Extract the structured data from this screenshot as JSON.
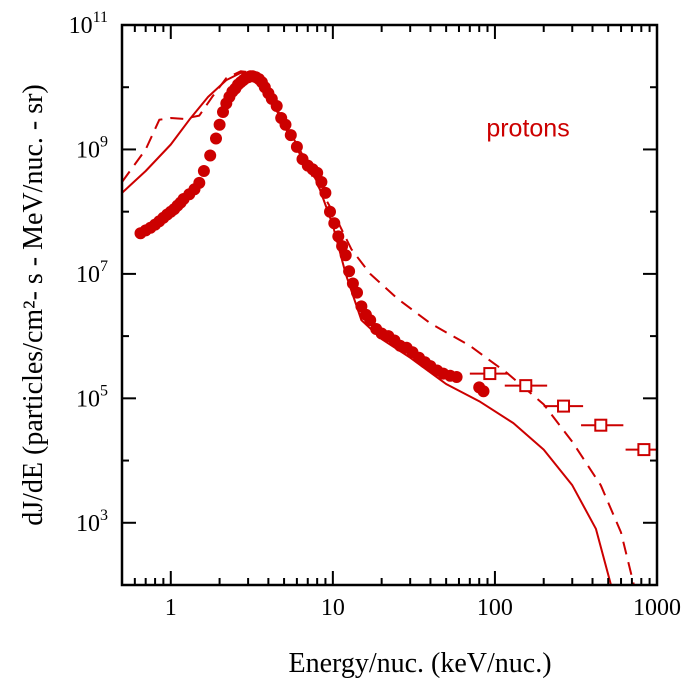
{
  "chart_data": {
    "type": "line",
    "title": "",
    "xlabel": "Energy/nuc. (keV/nuc.)",
    "ylabel": "dJ/dE (particles/cm²- s - MeV/nuc. - sr)",
    "x_scale": "log",
    "y_scale": "log",
    "xlim": [
      0.5,
      1000
    ],
    "ylim": [
      100,
      100000000000
    ],
    "x_ticks": [
      1,
      10,
      100,
      1000
    ],
    "x_tick_labels": [
      "1",
      "10",
      "100",
      "1000"
    ],
    "y_ticks": [
      1000,
      100000,
      10000000,
      1000000000,
      100000000000
    ],
    "y_tick_labels": [
      {
        "base": "10",
        "exp": "3"
      },
      {
        "base": "10",
        "exp": "5"
      },
      {
        "base": "10",
        "exp": "7"
      },
      {
        "base": "10",
        "exp": "9"
      },
      {
        "base": "10",
        "exp": "11"
      }
    ],
    "grid": false,
    "color": "#cc0000",
    "annotations": [
      {
        "text": "protons",
        "x": 160,
        "y": 1600000000
      }
    ],
    "series": [
      {
        "style": "solid-line",
        "x": [
          0.5,
          0.7,
          1.0,
          1.3,
          1.7,
          2.2,
          2.7,
          3.1,
          3.6,
          4.5,
          6,
          8,
          10,
          12,
          15,
          20,
          30,
          50,
          80,
          130,
          200,
          300,
          420,
          520
        ],
        "y": [
          200000000,
          450000000,
          1200000000,
          3000000000,
          7000000000,
          13000000000,
          17000000000,
          17000000000,
          12000000000,
          4500000000,
          1200000000,
          300000000,
          60000000,
          10000000,
          1800000,
          900000,
          450000,
          170000,
          90000,
          40000,
          15000,
          4000,
          800,
          100
        ]
      },
      {
        "style": "dashed-line",
        "x": [
          0.5,
          0.7,
          0.85,
          1.0,
          1.2,
          1.5,
          1.8,
          2.2,
          2.7,
          3.0,
          3.5,
          4.2,
          5.2,
          7,
          10,
          13,
          17,
          25,
          40,
          70,
          120,
          200,
          300,
          450,
          600,
          720
        ],
        "y": [
          300000000,
          1000000000,
          3000000000,
          3200000000,
          3100000000,
          3500000000,
          7000000000,
          14000000000,
          18000000000,
          17500000000,
          13000000000,
          6000000000,
          2000000000,
          500000000,
          100000000,
          25000000,
          10000000,
          4000000,
          1600000,
          700000,
          250000,
          80000,
          20000,
          4000,
          700,
          100
        ]
      },
      {
        "style": "filled-circle",
        "x": [
          0.65,
          0.7,
          0.75,
          0.8,
          0.85,
          0.9,
          0.95,
          1.0,
          1.05,
          1.1,
          1.15,
          1.2,
          1.3,
          1.4,
          1.5,
          1.6,
          1.75,
          1.9,
          2.0,
          2.1,
          2.2,
          2.3,
          2.4,
          2.5,
          2.6,
          2.7,
          2.8,
          2.9,
          3.0,
          3.1,
          3.2,
          3.35,
          3.5,
          3.65,
          3.8,
          4.0,
          4.2,
          4.5,
          4.8,
          5.1,
          5.5,
          6.0,
          6.5,
          7.0,
          7.5,
          8.0,
          8.5,
          9.0,
          9.6,
          10.2,
          10.8,
          11.4,
          12.0,
          12.6,
          13.3,
          14.1,
          15.0,
          16.0,
          17.0,
          18.5,
          20.0,
          22.0,
          24.0,
          26.0,
          28.5,
          31,
          34,
          37,
          40,
          44,
          48,
          53,
          58,
          80,
          85
        ],
        "y": [
          45000000,
          50000000,
          55000000,
          62000000,
          70000000,
          80000000,
          90000000,
          100000000,
          110000000,
          125000000,
          140000000,
          160000000,
          190000000,
          230000000,
          290000000,
          450000000,
          800000000,
          1500000000,
          2500000000,
          4000000000,
          5500000000,
          7000000000,
          8500000000,
          9500000000,
          11000000000,
          12000000000,
          13000000000,
          14000000000,
          14500000000,
          15000000000,
          15000000000,
          14500000000,
          13500000000,
          12000000000,
          10000000000,
          8000000000,
          6500000000,
          5000000000,
          3200000000,
          2500000000,
          1700000000,
          1100000000,
          700000000,
          550000000,
          480000000,
          420000000,
          300000000,
          200000000,
          100000000,
          65000000,
          40000000,
          28000000,
          20000000,
          11000000,
          7000000,
          5000000,
          3000000,
          2200000,
          1800000,
          1300000,
          1100000,
          1000000,
          850000,
          700000,
          650000,
          550000,
          450000,
          380000,
          330000,
          280000,
          250000,
          230000,
          220000,
          150000,
          130000
        ]
      },
      {
        "style": "open-square-errorbar",
        "x": [
          93,
          155,
          265,
          450,
          830
        ],
        "y": [
          250000,
          160000,
          75000,
          37000,
          15000
        ],
        "x_err": [
          [
            70,
            120
          ],
          [
            115,
            210
          ],
          [
            200,
            350
          ],
          [
            340,
            620
          ],
          [
            640,
            1000
          ]
        ]
      }
    ]
  }
}
